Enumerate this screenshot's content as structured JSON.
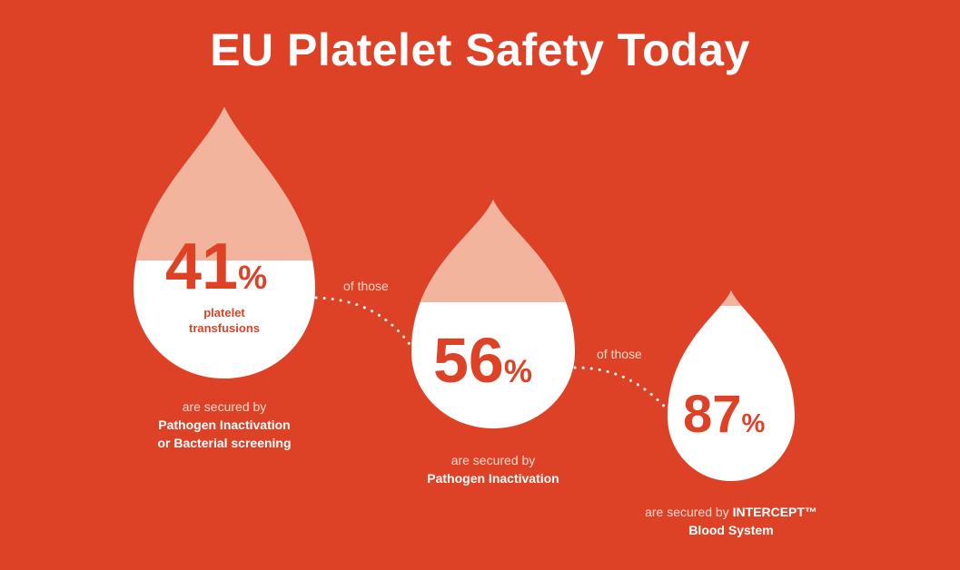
{
  "title": "EU Platelet Safety Today",
  "colors": {
    "background": "#dd4227",
    "drop_fill": "#ffffff",
    "drop_top": "#f2b49c",
    "connector": "#ffffff"
  },
  "chart_data": {
    "type": "infographic-percent-drops",
    "title": "EU Platelet Safety Today",
    "series": [
      {
        "value": 41,
        "unit": "%",
        "inner_label": [
          "platelet",
          "transfusions"
        ],
        "caption_light": "are secured by",
        "caption_bold": [
          "Pathogen Inactivation",
          "or Bacterial screening"
        ]
      },
      {
        "value": 56,
        "unit": "%",
        "caption_light": "are secured by",
        "caption_bold": [
          "Pathogen Inactivation"
        ]
      },
      {
        "value": 87,
        "unit": "%",
        "caption_light": "are secured by",
        "caption_bold_inline": "INTERCEPT™",
        "caption_bold": [
          "Blood System"
        ]
      }
    ],
    "connectors": [
      "of those",
      "of those"
    ]
  }
}
